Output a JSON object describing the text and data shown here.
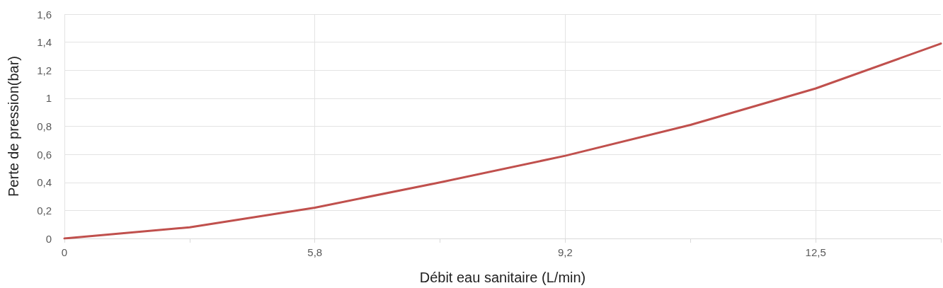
{
  "chart_data": {
    "type": "line",
    "xlabel": "Débit eau sanitaire (L/min)",
    "ylabel": "Perte de pression(bar)",
    "categories": [
      "0",
      null,
      "5,8",
      null,
      "9,2",
      null,
      "12,5",
      null
    ],
    "series": [
      {
        "color": "#c0504d",
        "values": [
          0,
          0.08,
          0.22,
          0.4,
          0.59,
          0.81,
          1.07,
          1.39
        ]
      }
    ],
    "ylim": [
      0,
      1.6
    ],
    "yticks": [
      0,
      {
        "value": 0.2,
        "label": "0,2"
      },
      {
        "value": 0.4,
        "label": "0,4"
      },
      {
        "value": 0.6,
        "label": "0,6"
      },
      {
        "value": 0.8,
        "label": "0,8"
      },
      1,
      {
        "value": 1.2,
        "label": "1,2"
      },
      {
        "value": 1.4,
        "label": "1,4"
      },
      {
        "value": 1.6,
        "label": "1,6"
      }
    ],
    "grid": true,
    "marker": "none",
    "line_style": "solid"
  }
}
